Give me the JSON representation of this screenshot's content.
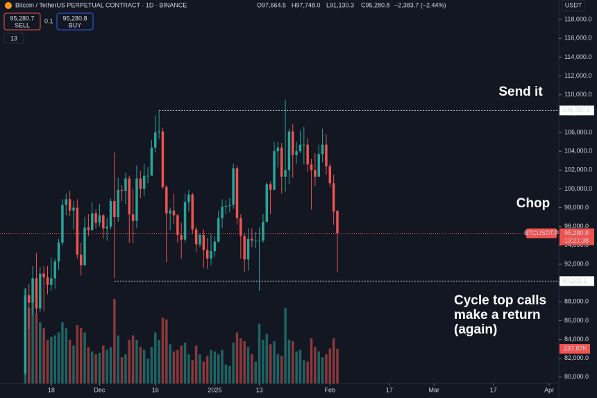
{
  "chart_data": {
    "type": "candlestick",
    "header": {
      "symbol": "Bitcoin / TetherUS PERPETUAL CONTRACT · 1D · BINANCE",
      "open": "O97,664.5",
      "high": "H97,748.0",
      "low": "L91,130.3",
      "close": "C95,280.8",
      "change": "−2,383.7 (−2.44%)",
      "sell_price": "95,280.7",
      "sell": "SELL",
      "qty": "0.1",
      "buy_price": "95,280.8",
      "buy": "BUY",
      "indicators": "13",
      "currency": "USDT"
    },
    "annotations": {
      "top": "Send it",
      "middle": "Chop",
      "bottom": [
        "Cycle top calls",
        "make a return",
        "(again)"
      ]
    },
    "levels": [
      {
        "value": 108332.2,
        "label": "108,332.2",
        "start": 36
      },
      {
        "value": 90202.1,
        "label": "90,202.1",
        "start": 24
      }
    ],
    "symbol_tag": "BTCUSDT.P",
    "close_label": "95,280.8",
    "countdown": "13:21:38",
    "volume_label": "237.87K",
    "up_color": "#26a69a",
    "down_color": "#ef5350",
    "open": [
      80400,
      88700,
      87900,
      90500,
      87300,
      91000,
      90600,
      89800,
      90500,
      92300,
      94300,
      98300,
      98900,
      97700,
      98000,
      93000,
      91900,
      95900,
      95600,
      97400,
      96400,
      97200,
      95800,
      96000,
      98700,
      97000,
      99900,
      99800,
      101100,
      97300,
      96600,
      101100,
      100000,
      101400,
      101400,
      104400,
      106000,
      106100,
      100200,
      97400,
      97700,
      97200,
      95100,
      94600,
      98600,
      99400,
      95700,
      94100,
      95100,
      93500,
      92600,
      93400,
      94400,
      96900,
      98100,
      98200,
      98300,
      102200,
      96900,
      95000,
      92500,
      94700,
      94500,
      94500,
      94500,
      96500,
      100500,
      99900,
      104000,
      104400,
      101300,
      102000,
      106100,
      103600,
      104000,
      104700,
      104700,
      102600,
      102000,
      101300,
      103700,
      104700,
      102400,
      100600,
      97664.5
    ],
    "high": [
      89500,
      89900,
      91800,
      93200,
      91700,
      91800,
      91800,
      92700,
      92600,
      94700,
      98900,
      99500,
      99800,
      98700,
      98900,
      94300,
      97000,
      97300,
      98600,
      97800,
      98400,
      97300,
      96900,
      99000,
      103900,
      101200,
      100400,
      101700,
      101400,
      100000,
      102500,
      101900,
      102700,
      102300,
      105200,
      107800,
      108300,
      106500,
      100400,
      98000,
      99500,
      97300,
      96400,
      99500,
      99900,
      99600,
      96000,
      95300,
      95700,
      94800,
      95200,
      95000,
      97700,
      98900,
      98800,
      99000,
      102700,
      102500,
      97300,
      95300,
      95800,
      95800,
      95400,
      95900,
      97300,
      100700,
      100800,
      105000,
      105000,
      104900,
      109500,
      106400,
      106900,
      105000,
      106200,
      106600,
      105400,
      103200,
      103800,
      104700,
      106400,
      105800,
      102700,
      101500,
      97748
    ],
    "low": [
      80200,
      85100,
      86600,
      86700,
      86900,
      87000,
      88800,
      89200,
      89400,
      91400,
      94000,
      97200,
      97100,
      95700,
      92600,
      90800,
      91800,
      95000,
      95600,
      95800,
      96000,
      94700,
      94500,
      95700,
      90500,
      96500,
      98700,
      98400,
      94300,
      94200,
      95800,
      99000,
      99200,
      100600,
      101400,
      103900,
      105300,
      100000,
      92200,
      95600,
      96300,
      94300,
      92600,
      94300,
      97600,
      95200,
      93300,
      93800,
      91600,
      91500,
      91900,
      92800,
      94300,
      95800,
      97300,
      97500,
      97900,
      96200,
      92600,
      91200,
      91300,
      93800,
      93700,
      89200,
      94300,
      96500,
      97300,
      99900,
      102300,
      99500,
      99700,
      100500,
      101200,
      102700,
      103800,
      102600,
      101800,
      97800,
      100300,
      101400,
      102800,
      101500,
      100200,
      96200,
      91130.3
    ],
    "close": [
      88700,
      87900,
      90500,
      87300,
      91000,
      90600,
      89800,
      90500,
      92300,
      94300,
      98300,
      98900,
      97700,
      98000,
      93000,
      91900,
      95900,
      95600,
      97400,
      96400,
      97200,
      95800,
      96000,
      98700,
      97000,
      99900,
      99800,
      101100,
      97300,
      96600,
      101100,
      100000,
      101400,
      101400,
      104400,
      106000,
      106100,
      100200,
      97400,
      97700,
      97200,
      95100,
      94600,
      98600,
      99400,
      95700,
      94100,
      95100,
      93500,
      92600,
      93400,
      94400,
      96900,
      98100,
      98200,
      98300,
      102200,
      96900,
      95000,
      92500,
      94700,
      94500,
      94500,
      94500,
      96500,
      100500,
      99900,
      104000,
      104400,
      101300,
      102000,
      106100,
      103600,
      104000,
      104700,
      104700,
      102600,
      102000,
      101300,
      103700,
      104700,
      102400,
      100600,
      97600,
      95280.8
    ],
    "volume": [
      650000,
      520000,
      560000,
      480000,
      420000,
      380000,
      300000,
      320000,
      330000,
      350000,
      420000,
      380000,
      300000,
      260000,
      400000,
      380000,
      350000,
      250000,
      220000,
      200000,
      210000,
      260000,
      230000,
      250000,
      580000,
      330000,
      180000,
      200000,
      300000,
      330000,
      300000,
      250000,
      230000,
      170000,
      250000,
      350000,
      300000,
      450000,
      440000,
      270000,
      220000,
      230000,
      260000,
      280000,
      200000,
      160000,
      260000,
      200000,
      150000,
      190000,
      230000,
      220000,
      200000,
      230000,
      130000,
      120000,
      280000,
      350000,
      310000,
      290000,
      250000,
      200000,
      150000,
      410000,
      300000,
      340000,
      270000,
      290000,
      200000,
      190000,
      520000,
      300000,
      290000,
      220000,
      230000,
      160000,
      150000,
      310000,
      250000,
      220000,
      180000,
      200000,
      240000,
      310000,
      237870
    ],
    "vlim": [
      0,
      1000000
    ],
    "xlim": [
      -6.8,
      143.6
    ],
    "xticks": [
      {
        "value": 7,
        "label": "18"
      },
      {
        "value": 20,
        "label": "Dec"
      },
      {
        "value": 35,
        "label": "16"
      },
      {
        "value": 51,
        "label": "2025"
      },
      {
        "value": 63,
        "label": "13"
      },
      {
        "value": 82,
        "label": "Feb"
      },
      {
        "value": 98,
        "label": "17"
      },
      {
        "value": 110,
        "label": "Mar"
      },
      {
        "value": 126,
        "label": "17"
      },
      {
        "value": 141,
        "label": "Apr"
      }
    ],
    "ylim": [
      78000,
      120000
    ],
    "yticks": [
      {
        "value": 80000,
        "label": "80,000.0"
      },
      {
        "value": 82000,
        "label": "82,000.0"
      },
      {
        "value": 84000,
        "label": "84,000.0"
      },
      {
        "value": 86000,
        "label": "86,000.0"
      },
      {
        "value": 88000,
        "label": "88,000.0"
      },
      {
        "value": 90000,
        "label": "90,000.0"
      },
      {
        "value": 92000,
        "label": "92,000.0"
      },
      {
        "value": 94000,
        "label": "94,000.0"
      },
      {
        "value": 96000,
        "label": "96,000.0"
      },
      {
        "value": 98000,
        "label": "98,000.0"
      },
      {
        "value": 100000,
        "label": "100,000.0"
      },
      {
        "value": 102000,
        "label": "102,000.0"
      },
      {
        "value": 104000,
        "label": "104,000.0"
      },
      {
        "value": 106000,
        "label": "106,000.0"
      },
      {
        "value": 108000,
        "label": "108,000.0"
      },
      {
        "value": 110000,
        "label": "110,000.0"
      },
      {
        "value": 112000,
        "label": "112,000.0"
      },
      {
        "value": 114000,
        "label": "114,000.0"
      },
      {
        "value": 116000,
        "label": "116,000.0"
      },
      {
        "value": 118000,
        "label": "118,000.0"
      }
    ]
  }
}
